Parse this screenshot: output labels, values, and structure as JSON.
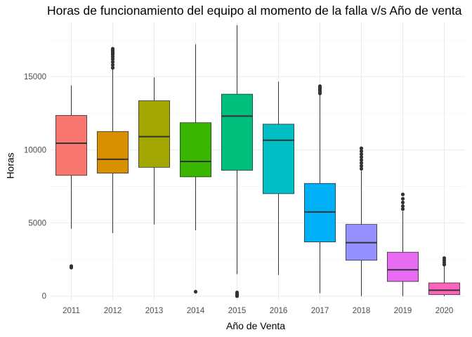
{
  "chart_data": {
    "type": "boxplot",
    "title": "Horas de funcionamiento del equipo al momento de la falla v/s Año de venta",
    "xlabel": "Año de Venta",
    "ylabel": "Horas",
    "ylim": [
      -300,
      18700
    ],
    "y_ticks": [
      0,
      5000,
      10000,
      15000
    ],
    "y_tick_labels": [
      "0",
      "5000",
      "10000",
      "15000"
    ],
    "categories": [
      "2011",
      "2012",
      "2013",
      "2014",
      "2015",
      "2016",
      "2017",
      "2018",
      "2019",
      "2020"
    ],
    "colors": [
      "#F8766D",
      "#D89000",
      "#A3A500",
      "#39B600",
      "#00BF7D",
      "#00BFC4",
      "#00B0F6",
      "#9590FF",
      "#E76BF3",
      "#FF62BC"
    ],
    "grid": true,
    "legend": "none",
    "boxes": [
      {
        "category": "2011",
        "whisker_low": 4600,
        "q1": 8250,
        "median": 10450,
        "q3": 12350,
        "whisker_high": 14400,
        "outliers": [
          1950,
          2050
        ]
      },
      {
        "category": "2012",
        "whisker_low": 4300,
        "q1": 8400,
        "median": 9350,
        "q3": 11250,
        "whisker_high": 15500,
        "outliers": [
          15600,
          15800,
          16000,
          16200,
          16350,
          16500,
          16600,
          16700,
          16800,
          16900
        ]
      },
      {
        "category": "2013",
        "whisker_low": 4900,
        "q1": 8800,
        "median": 10900,
        "q3": 13350,
        "whisker_high": 14950,
        "outliers": []
      },
      {
        "category": "2014",
        "whisker_low": 4500,
        "q1": 8150,
        "median": 9200,
        "q3": 11850,
        "whisker_high": 17200,
        "outliers": [
          300
        ]
      },
      {
        "category": "2015",
        "whisker_low": 1500,
        "q1": 8600,
        "median": 12300,
        "q3": 13800,
        "whisker_high": 18500,
        "outliers": [
          0,
          80,
          150,
          250
        ]
      },
      {
        "category": "2016",
        "whisker_low": 1450,
        "q1": 7000,
        "median": 10650,
        "q3": 11750,
        "whisker_high": 14650,
        "outliers": []
      },
      {
        "category": "2017",
        "whisker_low": 200,
        "q1": 3700,
        "median": 5750,
        "q3": 7700,
        "whisker_high": 13800,
        "outliers": [
          13850,
          13950,
          14050,
          14150,
          14250,
          14350
        ]
      },
      {
        "category": "2018",
        "whisker_low": 0,
        "q1": 2450,
        "median": 3650,
        "q3": 4900,
        "whisker_high": 8550,
        "outliers": [
          8700,
          8900,
          9100,
          9300,
          9500,
          9700,
          9900,
          10100
        ]
      },
      {
        "category": "2019",
        "whisker_low": 0,
        "q1": 1000,
        "median": 1800,
        "q3": 3000,
        "whisker_high": 5800,
        "outliers": [
          5950,
          6150,
          6400,
          6650,
          6950
        ]
      },
      {
        "category": "2020",
        "whisker_low": 0,
        "q1": 100,
        "median": 400,
        "q3": 900,
        "whisker_high": 2050,
        "outliers": [
          2150,
          2300,
          2450,
          2600
        ]
      }
    ]
  }
}
